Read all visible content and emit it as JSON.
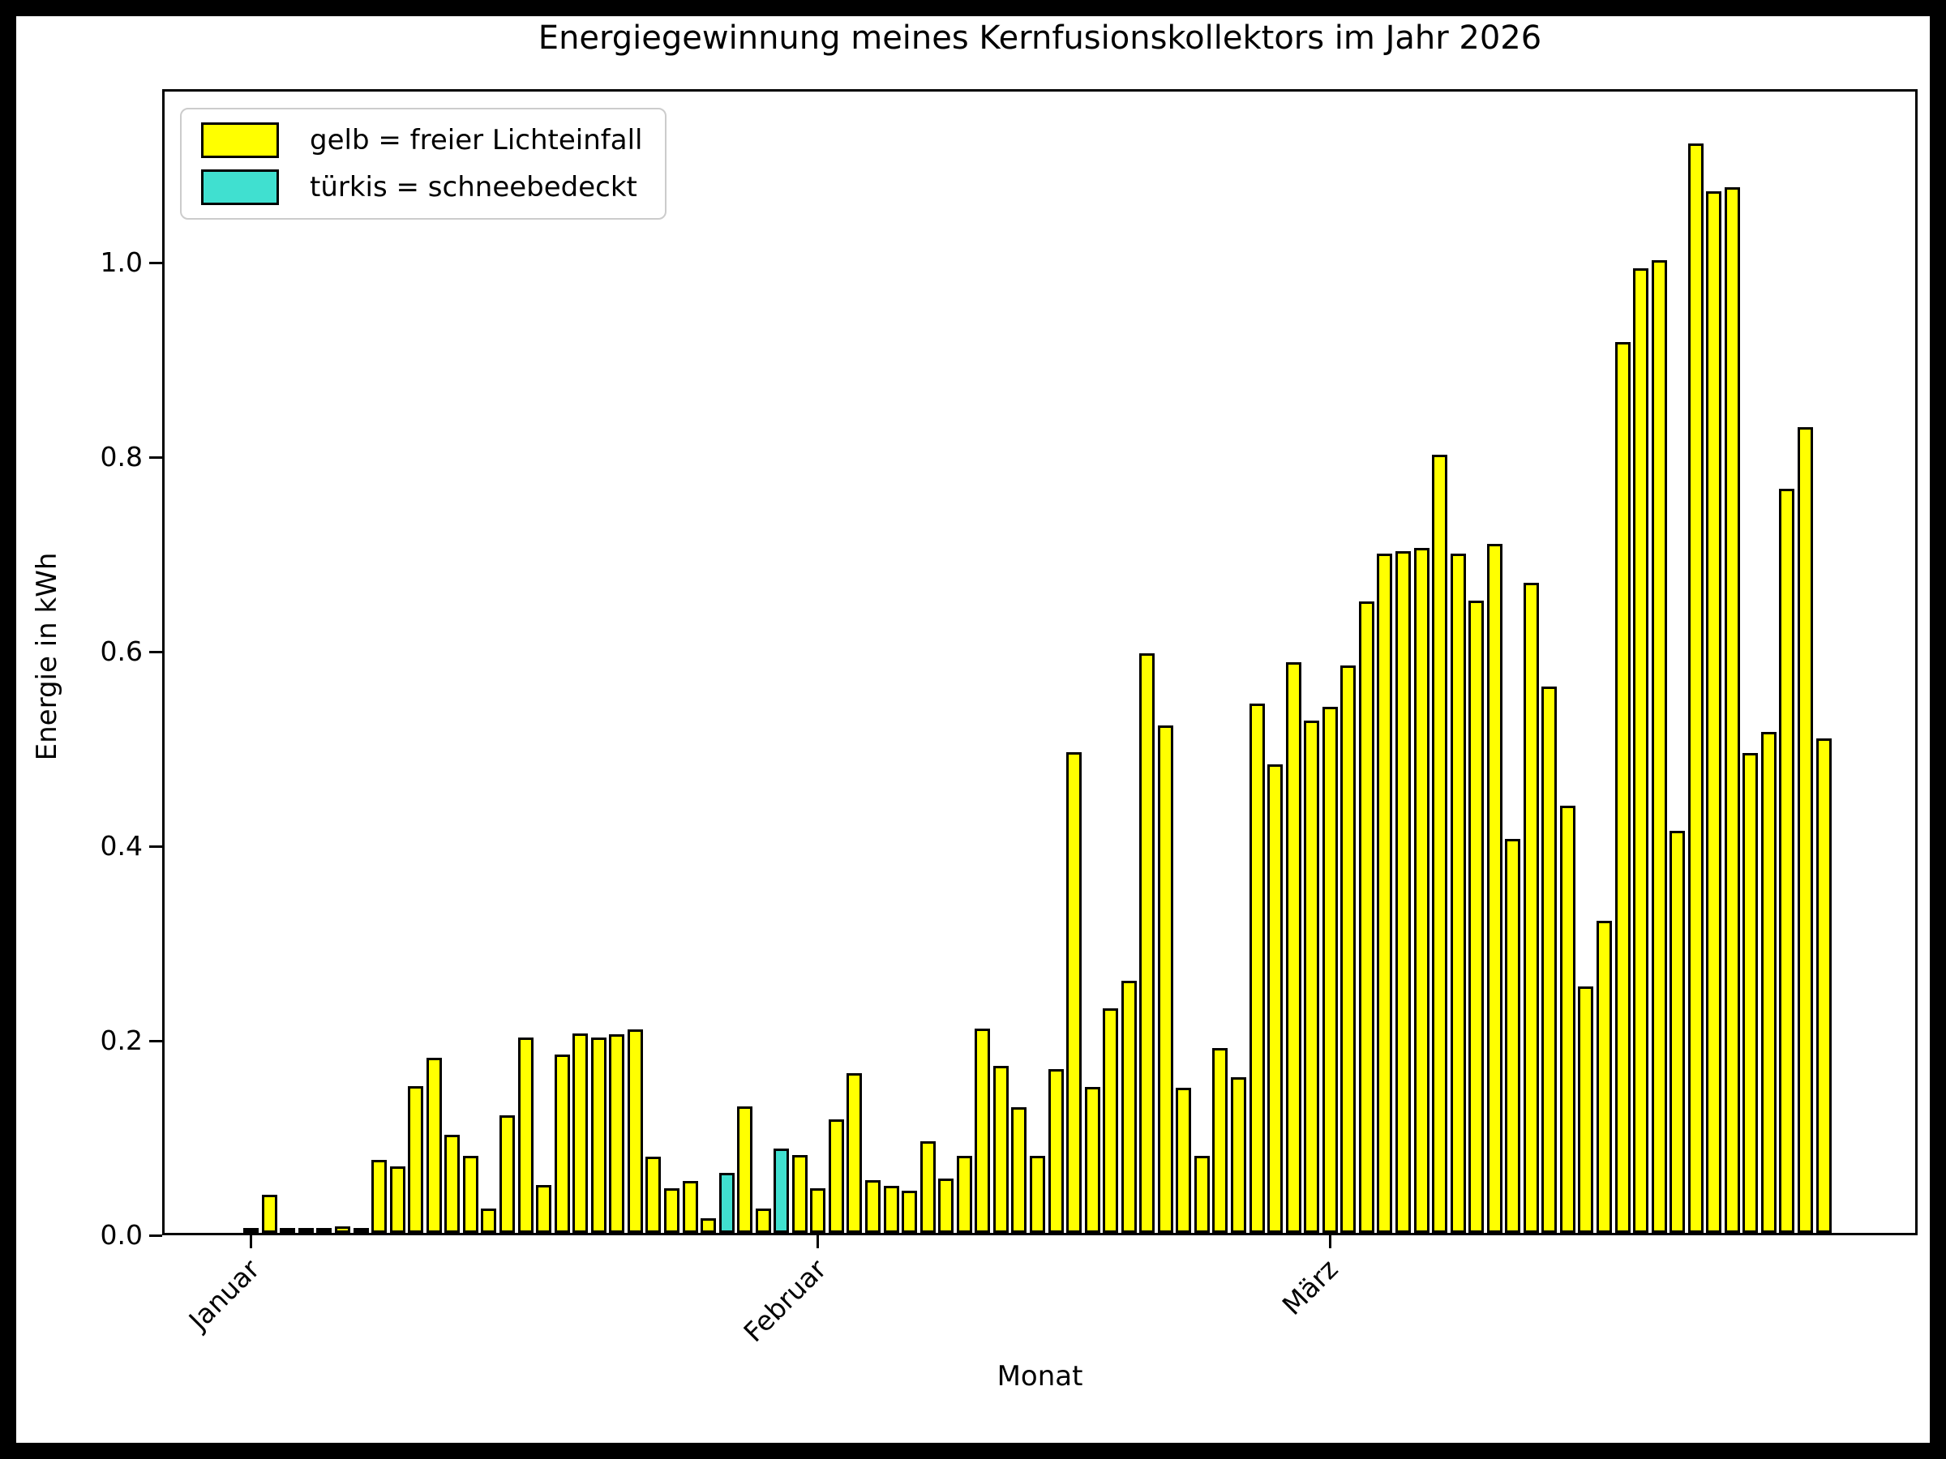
{
  "title": "Energiegewinnung meines Kernfusionskollektors im Jahr 2026",
  "legend": {
    "items": [
      {
        "label": "gelb = freier Lichteinfall",
        "color": "#ffff00"
      },
      {
        "label": "türkis = schneebedeckt",
        "color": "#40e0d0"
      }
    ]
  },
  "axes": {
    "ylabel": "Energie in kWh",
    "xlabel": "Monat",
    "ytick_labels": [
      "0.0",
      "0.2",
      "0.4",
      "0.6",
      "0.8",
      "1.0"
    ],
    "xtick_labels": [
      "Januar",
      "Februar",
      "März"
    ]
  },
  "chart_data": {
    "type": "bar",
    "title": "Energiegewinnung meines Kernfusionskollektors im Jahr 2026",
    "xlabel": "Monat",
    "ylabel": "Energie in kWh",
    "ylim": [
      0,
      1.178
    ],
    "yticks": [
      0.0,
      0.2,
      0.4,
      0.6,
      0.8,
      1.0
    ],
    "x_description": "Ein Balken pro Tag, 1. Januar bis 31. März 2026 (90 Tage)",
    "month_ticks": [
      {
        "label": "Januar",
        "day_index": 0
      },
      {
        "label": "Februar",
        "day_index": 31
      },
      {
        "label": "März",
        "day_index": 59
      }
    ],
    "legend": [
      "gelb = freier Lichteinfall",
      "türkis = schneebedeckt"
    ],
    "grid": false,
    "series": [
      {
        "name": "Energie in kWh",
        "values": [
          0.004,
          0.039,
          0.003,
          0.004,
          0.002,
          0.007,
          0.003,
          0.075,
          0.068,
          0.151,
          0.18,
          0.101,
          0.079,
          0.025,
          0.121,
          0.201,
          0.049,
          0.183,
          0.205,
          0.201,
          0.204,
          0.209,
          0.078,
          0.046,
          0.053,
          0.015,
          0.062,
          0.13,
          0.025,
          0.087,
          0.08,
          0.046,
          0.117,
          0.164,
          0.054,
          0.048,
          0.043,
          0.094,
          0.056,
          0.079,
          0.21,
          0.172,
          0.129,
          0.079,
          0.168,
          0.494,
          0.15,
          0.231,
          0.259,
          0.596,
          0.522,
          0.149,
          0.079,
          0.19,
          0.16,
          0.544,
          0.482,
          0.587,
          0.527,
          0.541,
          0.583,
          0.649,
          0.698,
          0.701,
          0.704,
          0.8,
          0.698,
          0.65,
          0.708,
          0.405,
          0.668,
          0.562,
          0.439,
          0.253,
          0.321,
          0.916,
          0.992,
          1.0,
          0.413,
          1.12,
          1.071,
          1.075,
          0.493,
          0.515,
          0.765,
          0.828,
          0.508,
          0.0,
          0.0,
          0.0
        ]
      }
    ],
    "snow_day_indices": [
      26,
      29
    ],
    "colors": {
      "default": "#ffff00",
      "snow": "#40e0d0",
      "edge": "#000000"
    }
  }
}
